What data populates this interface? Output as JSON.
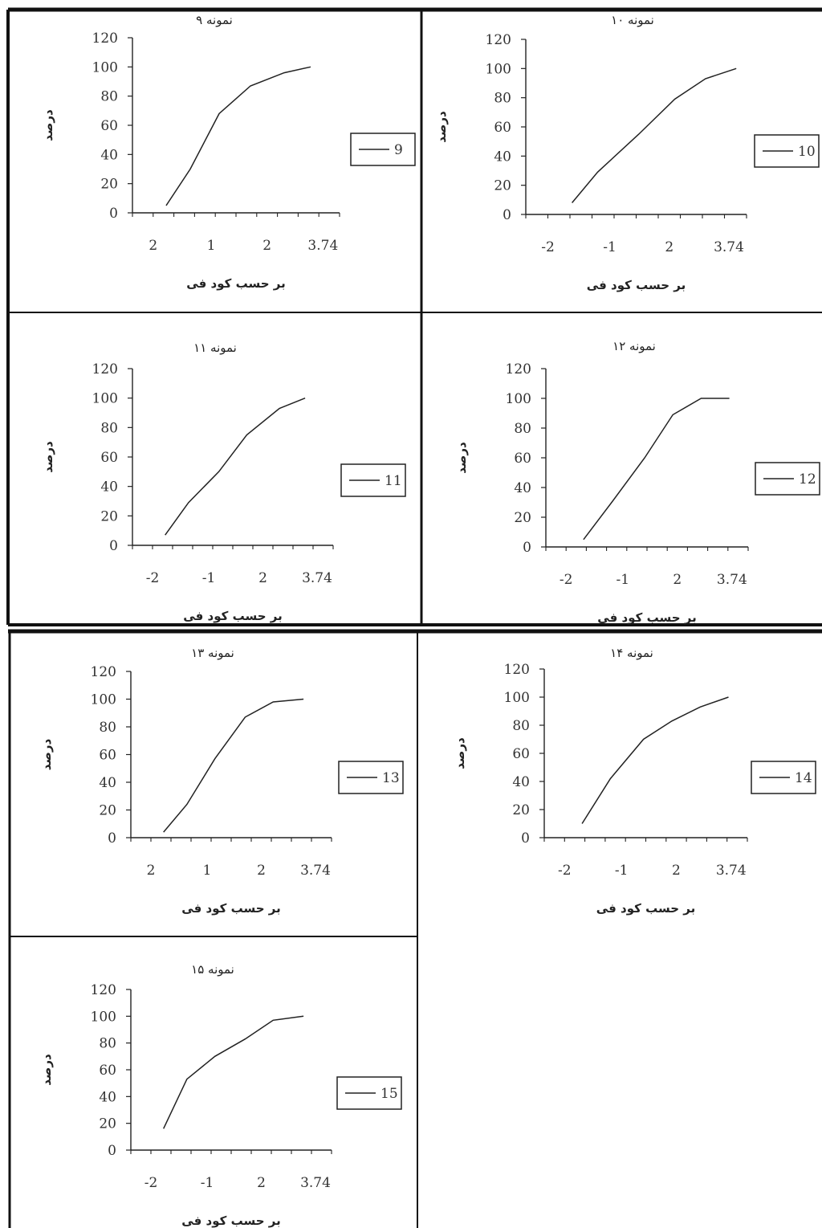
{
  "chart_data": [
    {
      "type": "line",
      "title": "نمونه ۹",
      "xlabel": "بر حسب کود فی",
      "ylabel": "درصد",
      "x_tick_labels": [
        "2",
        "1",
        "2",
        "3.74"
      ],
      "y_tick_labels": [
        "0",
        "20",
        "40",
        "60",
        "80",
        "100",
        "120"
      ],
      "ylim": [
        0,
        120
      ],
      "legend": "9",
      "series": [
        {
          "name": "9",
          "points": [
            [
              -2.6,
              5
            ],
            [
              -1.6,
              30
            ],
            [
              -0.4,
              68
            ],
            [
              0.9,
              87
            ],
            [
              2.3,
              96
            ],
            [
              3.4,
              100
            ]
          ]
        }
      ]
    },
    {
      "type": "line",
      "title": "نمونه ۱۰",
      "xlabel": "بر حسب کود فی",
      "ylabel": "درصد",
      "x_tick_labels": [
        "-2",
        "-1",
        "2",
        "3.74"
      ],
      "y_tick_labels": [
        "0",
        "20",
        "40",
        "60",
        "80",
        "100",
        "120"
      ],
      "ylim": [
        0,
        120
      ],
      "legend": "10",
      "series": [
        {
          "name": "10",
          "points": [
            [
              -2.2,
              8
            ],
            [
              -1.2,
              29
            ],
            [
              0.4,
              55
            ],
            [
              1.8,
              79
            ],
            [
              3.0,
              93
            ],
            [
              4.2,
              100
            ]
          ]
        }
      ]
    },
    {
      "type": "line",
      "title": "نمونه ۱۱",
      "xlabel": "بر حسب کود فی",
      "ylabel": "درصد",
      "x_tick_labels": [
        "-2",
        "-1",
        "2",
        "3.74"
      ],
      "y_tick_labels": [
        "0",
        "20",
        "40",
        "60",
        "80",
        "100",
        "120"
      ],
      "ylim": [
        0,
        120
      ],
      "legend": "11",
      "series": [
        {
          "name": "11",
          "points": [
            [
              -2.6,
              7
            ],
            [
              -1.6,
              29
            ],
            [
              -0.3,
              50
            ],
            [
              0.9,
              75
            ],
            [
              2.3,
              93
            ],
            [
              3.4,
              100
            ]
          ]
        }
      ]
    },
    {
      "type": "line",
      "title": "نمونه ۱۲",
      "xlabel": "بر حسب کود فی",
      "ylabel": "درصد",
      "x_tick_labels": [
        "-2",
        "-1",
        "2",
        "3.74"
      ],
      "y_tick_labels": [
        "0",
        "20",
        "40",
        "60",
        "80",
        "100",
        "120"
      ],
      "ylim": [
        0,
        120
      ],
      "legend": "12",
      "series": [
        {
          "name": "12",
          "points": [
            [
              -2.4,
              5
            ],
            [
              -1.2,
              30
            ],
            [
              0.2,
              60
            ],
            [
              1.4,
              89
            ],
            [
              2.6,
              100
            ],
            [
              3.8,
              100
            ]
          ]
        }
      ]
    },
    {
      "type": "line",
      "title": "نمونه ۱۳",
      "xlabel": "بر حسب کود فی",
      "ylabel": "درصد",
      "x_tick_labels": [
        "2",
        "1",
        "2",
        "3.74"
      ],
      "y_tick_labels": [
        "0",
        "20",
        "40",
        "60",
        "80",
        "100",
        "120"
      ],
      "ylim": [
        0,
        120
      ],
      "legend": "13",
      "series": [
        {
          "name": "13",
          "points": [
            [
              -2.6,
              4
            ],
            [
              -1.6,
              24
            ],
            [
              -0.4,
              57
            ],
            [
              0.9,
              87
            ],
            [
              2.1,
              98
            ],
            [
              3.4,
              100
            ]
          ]
        }
      ]
    },
    {
      "type": "line",
      "title": "نمونه ۱۴",
      "xlabel": "بر حسب کود فی",
      "ylabel": "درصد",
      "x_tick_labels": [
        "-2",
        "-1",
        "2",
        "3.74"
      ],
      "y_tick_labels": [
        "0",
        "20",
        "40",
        "60",
        "80",
        "100",
        "120"
      ],
      "ylim": [
        0,
        120
      ],
      "legend": "14",
      "series": [
        {
          "name": "14",
          "points": [
            [
              -2.4,
              10
            ],
            [
              -1.2,
              42
            ],
            [
              0.2,
              70
            ],
            [
              1.4,
              83
            ],
            [
              2.6,
              93
            ],
            [
              3.8,
              100
            ]
          ]
        }
      ]
    },
    {
      "type": "line",
      "title": "نمونه ۱۵",
      "xlabel": "بر حسب کود فی",
      "ylabel": "درصد",
      "x_tick_labels": [
        "-2",
        "-1",
        "2",
        "3.74"
      ],
      "y_tick_labels": [
        "0",
        "20",
        "40",
        "60",
        "80",
        "100",
        "120"
      ],
      "ylim": [
        0,
        120
      ],
      "legend": "15",
      "series": [
        {
          "name": "15",
          "points": [
            [
              -2.6,
              16
            ],
            [
              -1.6,
              53
            ],
            [
              -0.4,
              70
            ],
            [
              0.9,
              83
            ],
            [
              2.1,
              97
            ],
            [
              3.4,
              100
            ]
          ]
        }
      ]
    }
  ]
}
